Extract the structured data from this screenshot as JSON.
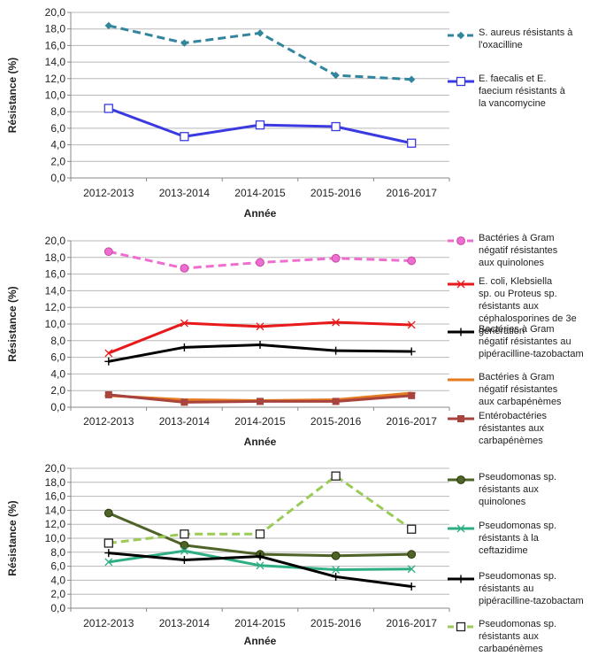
{
  "chart_data": [
    {
      "type": "line",
      "xlabel": "Année",
      "ylabel": "Résistance (%)",
      "categories": [
        "2012-2013",
        "2013-2014",
        "2014-2015",
        "2015-2016",
        "2016-2017"
      ],
      "ylim": [
        0,
        20
      ],
      "ytick_labels": [
        "0,0",
        "2,0",
        "4,0",
        "6,0",
        "8,0",
        "10,0",
        "12,0",
        "14,0",
        "16,0",
        "18,0",
        "20,0"
      ],
      "grid": true,
      "legend_position": "right",
      "series": [
        {
          "name": "S. aureus résistants à l'oxacilline",
          "values": [
            18.4,
            16.3,
            17.5,
            12.4,
            11.9
          ],
          "color": "#31859C",
          "dash": "dash",
          "marker": "diamond"
        },
        {
          "name": "E. faecalis et E. faecium résistants à la vancomycine",
          "values": [
            8.4,
            5.0,
            6.4,
            6.2,
            4.2
          ],
          "color": "#3A3AE0",
          "dash": "solid",
          "marker": "square-open"
        }
      ]
    },
    {
      "type": "line",
      "xlabel": "Année",
      "ylabel": "Résistance (%)",
      "categories": [
        "2012-2013",
        "2013-2014",
        "2014-2015",
        "2015-2016",
        "2016-2017"
      ],
      "ylim": [
        0,
        20
      ],
      "ytick_labels": [
        "0,0",
        "2,0",
        "4,0",
        "6,0",
        "8,0",
        "10,0",
        "12,0",
        "14,0",
        "16,0",
        "18,0",
        "20,0"
      ],
      "grid": true,
      "legend_position": "right",
      "series": [
        {
          "name": "Bactéries à Gram négatif résistantes aux quinolones",
          "values": [
            18.7,
            16.7,
            17.4,
            17.9,
            17.6
          ],
          "color": "#EE6ED0",
          "dash": "dash",
          "marker": "circle"
        },
        {
          "name": "E. coli, Klebsiella sp. ou Proteus sp. résistants aux céphalosporines de 3e génération",
          "values": [
            6.5,
            10.1,
            9.7,
            10.2,
            9.9
          ],
          "color": "#E8191B",
          "dash": "solid",
          "marker": "x"
        },
        {
          "name": "Bactéries à Gram négatif résistantes au pipéracilline-tazobactam",
          "values": [
            5.5,
            7.2,
            7.5,
            6.8,
            6.7
          ],
          "color": "#000000",
          "dash": "solid",
          "marker": "plus"
        },
        {
          "name": "Bactéries à Gram négatif résistantes aux carbapénèmes",
          "values": [
            1.4,
            0.9,
            0.8,
            0.9,
            1.7
          ],
          "color": "#E57A1F",
          "dash": "solid",
          "marker": "dash"
        },
        {
          "name": "Entérobactéries résistantes aux carbapénèmes",
          "values": [
            1.5,
            0.6,
            0.7,
            0.7,
            1.4
          ],
          "color": "#A8433D",
          "dash": "solid",
          "marker": "square"
        }
      ]
    },
    {
      "type": "line",
      "xlabel": "Année",
      "ylabel": "Résistance (%)",
      "categories": [
        "2012-2013",
        "2013-2014",
        "2014-2015",
        "2015-2016",
        "2016-2017"
      ],
      "ylim": [
        0,
        20
      ],
      "ytick_labels": [
        "0,0",
        "2,0",
        "4,0",
        "6,0",
        "8,0",
        "10,0",
        "12,0",
        "14,0",
        "16,0",
        "18,0",
        "20,0"
      ],
      "grid": true,
      "legend_position": "right",
      "series": [
        {
          "name": "Pseudomonas sp. résistants aux quinolones",
          "values": [
            13.6,
            9.0,
            7.7,
            7.5,
            7.7
          ],
          "color": "#4F6228",
          "dash": "solid",
          "marker": "circle"
        },
        {
          "name": "Pseudomonas sp. résistants à la ceftazidime",
          "values": [
            6.6,
            8.2,
            6.1,
            5.5,
            5.6
          ],
          "color": "#2EAE84",
          "dash": "solid",
          "marker": "x"
        },
        {
          "name": "Pseudomonas sp. résistants au pipéracilline-tazobactam",
          "values": [
            7.9,
            6.9,
            7.4,
            4.5,
            3.1
          ],
          "color": "#000000",
          "dash": "solid",
          "marker": "plus"
        },
        {
          "name": "Pseudomonas sp. résistants aux carbapénèmes",
          "values": [
            9.3,
            10.6,
            10.6,
            18.9,
            11.3
          ],
          "color": "#9BCB56",
          "dash": "dash",
          "marker": "square-open"
        }
      ]
    }
  ]
}
